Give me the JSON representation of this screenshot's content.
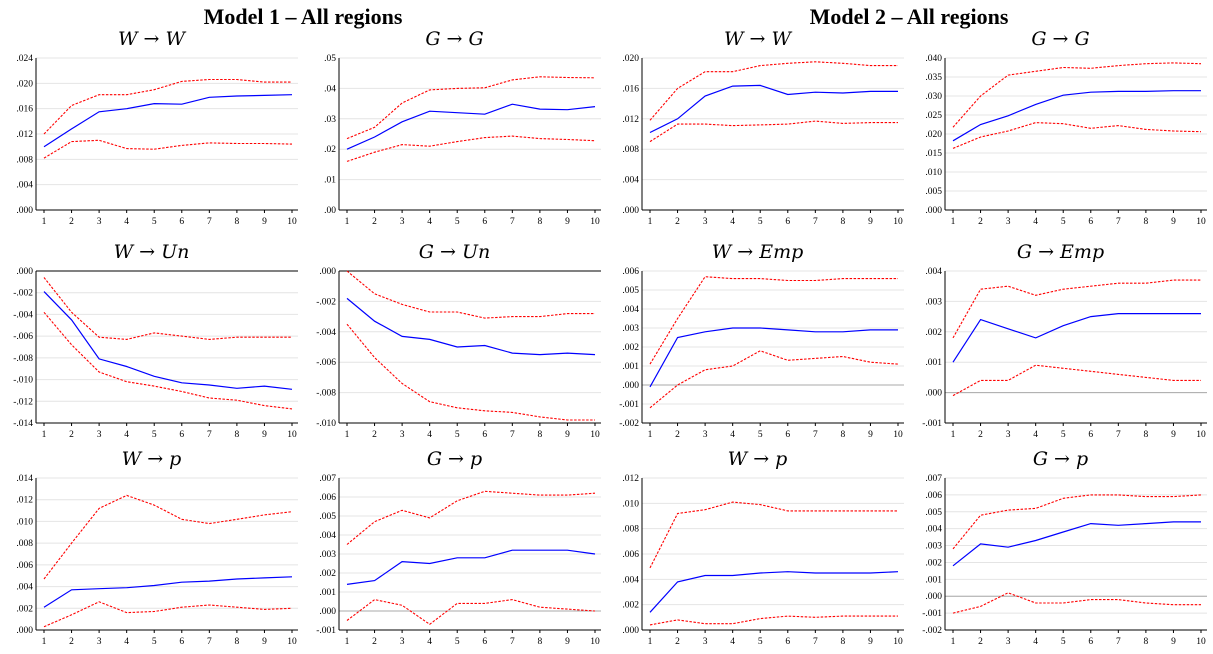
{
  "titles": {
    "left": "Model 1 – All regions",
    "right": "Model 2 – All regions"
  },
  "colors": {
    "response": "#0000ff",
    "band": "#ff0000",
    "grid": "#e4e4e4",
    "zero": "#aaaaaa"
  },
  "chart_data": [
    {
      "type": "line",
      "title": "W → W",
      "x": [
        1,
        2,
        3,
        4,
        5,
        6,
        7,
        8,
        9,
        10
      ],
      "ylim": [
        0,
        0.024
      ],
      "yticks": [
        ".000",
        ".004",
        ".008",
        ".012",
        ".016",
        ".020",
        ".024"
      ],
      "series": [
        {
          "values": [
            0.01,
            0.0128,
            0.0155,
            0.016,
            0.0168,
            0.0167,
            0.0178,
            0.018,
            0.0181,
            0.0182
          ]
        },
        {
          "values": [
            0.012,
            0.0165,
            0.0182,
            0.0182,
            0.019,
            0.0203,
            0.0206,
            0.0206,
            0.0202,
            0.0202
          ]
        },
        {
          "values": [
            0.0082,
            0.0108,
            0.011,
            0.0097,
            0.0096,
            0.0102,
            0.0106,
            0.0105,
            0.0105,
            0.0104
          ]
        }
      ]
    },
    {
      "type": "line",
      "title": "G → G",
      "x": [
        1,
        2,
        3,
        4,
        5,
        6,
        7,
        8,
        9,
        10
      ],
      "ylim": [
        0,
        0.05
      ],
      "yticks": [
        ".00",
        ".01",
        ".02",
        ".03",
        ".04",
        ".05"
      ],
      "series": [
        {
          "values": [
            0.02,
            0.024,
            0.029,
            0.0325,
            0.032,
            0.0315,
            0.0348,
            0.0332,
            0.033,
            0.034
          ]
        },
        {
          "values": [
            0.0235,
            0.0272,
            0.0352,
            0.0395,
            0.04,
            0.0402,
            0.0428,
            0.0438,
            0.0436,
            0.0435
          ]
        },
        {
          "values": [
            0.016,
            0.019,
            0.0215,
            0.021,
            0.0225,
            0.0238,
            0.0243,
            0.0235,
            0.0232,
            0.0228
          ]
        }
      ]
    },
    {
      "type": "line",
      "title": "W → W",
      "x": [
        1,
        2,
        3,
        4,
        5,
        6,
        7,
        8,
        9,
        10
      ],
      "ylim": [
        0,
        0.02
      ],
      "yticks": [
        ".000",
        ".004",
        ".008",
        ".012",
        ".016",
        ".020"
      ],
      "series": [
        {
          "values": [
            0.0102,
            0.012,
            0.015,
            0.0163,
            0.0164,
            0.0152,
            0.0155,
            0.0154,
            0.0156,
            0.0156
          ]
        },
        {
          "values": [
            0.0118,
            0.016,
            0.0182,
            0.0182,
            0.019,
            0.0193,
            0.0195,
            0.0193,
            0.019,
            0.019
          ]
        },
        {
          "values": [
            0.009,
            0.0113,
            0.0113,
            0.0111,
            0.0112,
            0.0113,
            0.0117,
            0.0114,
            0.0115,
            0.0115
          ]
        }
      ]
    },
    {
      "type": "line",
      "title": "G → G",
      "x": [
        1,
        2,
        3,
        4,
        5,
        6,
        7,
        8,
        9,
        10
      ],
      "ylim": [
        0,
        0.04
      ],
      "yticks": [
        ".000",
        ".005",
        ".010",
        ".015",
        ".020",
        ".025",
        ".030",
        ".035",
        ".040"
      ],
      "series": [
        {
          "values": [
            0.0182,
            0.0225,
            0.0248,
            0.0278,
            0.0302,
            0.031,
            0.0312,
            0.0312,
            0.0314,
            0.0314
          ]
        },
        {
          "values": [
            0.0218,
            0.03,
            0.0355,
            0.0365,
            0.0375,
            0.0373,
            0.038,
            0.0385,
            0.0387,
            0.0385
          ]
        },
        {
          "values": [
            0.0162,
            0.0192,
            0.0208,
            0.023,
            0.0227,
            0.0215,
            0.0222,
            0.0212,
            0.0208,
            0.0206
          ]
        }
      ]
    },
    {
      "type": "line",
      "title": "W → Un",
      "x": [
        1,
        2,
        3,
        4,
        5,
        6,
        7,
        8,
        9,
        10
      ],
      "ylim": [
        -0.014,
        0
      ],
      "yticks": [
        "-.014",
        "-.012",
        "-.010",
        "-.008",
        "-.006",
        "-.004",
        "-.002",
        ".000"
      ],
      "series": [
        {
          "values": [
            -0.0019,
            -0.0045,
            -0.0081,
            -0.0088,
            -0.0097,
            -0.0103,
            -0.0105,
            -0.0108,
            -0.0106,
            -0.0109
          ]
        },
        {
          "values": [
            -0.0006,
            -0.0038,
            -0.0061,
            -0.0063,
            -0.0057,
            -0.006,
            -0.0063,
            -0.0061,
            -0.0061,
            -0.0061
          ]
        },
        {
          "values": [
            -0.0038,
            -0.0068,
            -0.0093,
            -0.0102,
            -0.0106,
            -0.0111,
            -0.0117,
            -0.0119,
            -0.0124,
            -0.0127
          ]
        }
      ]
    },
    {
      "type": "line",
      "title": "G → Un",
      "x": [
        1,
        2,
        3,
        4,
        5,
        6,
        7,
        8,
        9,
        10
      ],
      "ylim": [
        -0.01,
        0
      ],
      "yticks": [
        "-.010",
        "-.008",
        "-.006",
        "-.004",
        "-.002",
        ".000"
      ],
      "series": [
        {
          "values": [
            -0.0018,
            -0.0033,
            -0.0043,
            -0.0045,
            -0.005,
            -0.0049,
            -0.0054,
            -0.0055,
            -0.0054,
            -0.0055
          ]
        },
        {
          "values": [
            0.0,
            -0.0015,
            -0.0022,
            -0.0027,
            -0.0027,
            -0.0031,
            -0.003,
            -0.003,
            -0.0028,
            -0.0028
          ]
        },
        {
          "values": [
            -0.0035,
            -0.0057,
            -0.0074,
            -0.0086,
            -0.009,
            -0.0092,
            -0.0093,
            -0.0096,
            -0.0098,
            -0.0098
          ]
        }
      ]
    },
    {
      "type": "line",
      "title": "W → Emp",
      "x": [
        1,
        2,
        3,
        4,
        5,
        6,
        7,
        8,
        9,
        10
      ],
      "ylim": [
        -0.002,
        0.006
      ],
      "yticks": [
        "-.002",
        "-.001",
        ".000",
        ".001",
        ".002",
        ".003",
        ".004",
        ".005",
        ".006"
      ],
      "series": [
        {
          "values": [
            -0.0001,
            0.0025,
            0.0028,
            0.003,
            0.003,
            0.0029,
            0.0028,
            0.0028,
            0.0029,
            0.0029
          ]
        },
        {
          "values": [
            0.0011,
            0.0035,
            0.0057,
            0.0056,
            0.0056,
            0.0055,
            0.0055,
            0.0056,
            0.0056,
            0.0056
          ]
        },
        {
          "values": [
            -0.0012,
            0.0,
            0.0008,
            0.001,
            0.0018,
            0.0013,
            0.0014,
            0.0015,
            0.0012,
            0.0011
          ]
        }
      ]
    },
    {
      "type": "line",
      "title": "G → Emp",
      "x": [
        1,
        2,
        3,
        4,
        5,
        6,
        7,
        8,
        9,
        10
      ],
      "ylim": [
        -0.001,
        0.004
      ],
      "yticks": [
        "-.001",
        ".000",
        ".001",
        ".002",
        ".003",
        ".004"
      ],
      "series": [
        {
          "values": [
            0.001,
            0.0024,
            0.0021,
            0.0018,
            0.0022,
            0.0025,
            0.0026,
            0.0026,
            0.0026,
            0.0026
          ]
        },
        {
          "values": [
            0.0018,
            0.0034,
            0.0035,
            0.0032,
            0.0034,
            0.0035,
            0.0036,
            0.0036,
            0.0037,
            0.0037
          ]
        },
        {
          "values": [
            -0.0001,
            0.0004,
            0.0004,
            0.0009,
            0.0008,
            0.0007,
            0.0006,
            0.0005,
            0.0004,
            0.0004
          ]
        }
      ]
    },
    {
      "type": "line",
      "title": "W → p",
      "x": [
        1,
        2,
        3,
        4,
        5,
        6,
        7,
        8,
        9,
        10
      ],
      "ylim": [
        0,
        0.014
      ],
      "yticks": [
        ".000",
        ".002",
        ".004",
        ".006",
        ".008",
        ".010",
        ".012",
        ".014"
      ],
      "series": [
        {
          "values": [
            0.0021,
            0.0037,
            0.0038,
            0.0039,
            0.0041,
            0.0044,
            0.0045,
            0.0047,
            0.0048,
            0.0049
          ]
        },
        {
          "values": [
            0.0047,
            0.008,
            0.0112,
            0.0124,
            0.0115,
            0.0102,
            0.0098,
            0.0102,
            0.0106,
            0.0109
          ]
        },
        {
          "values": [
            0.0003,
            0.0014,
            0.0026,
            0.0016,
            0.0017,
            0.0021,
            0.0023,
            0.0021,
            0.0019,
            0.002
          ]
        }
      ]
    },
    {
      "type": "line",
      "title": "G → p",
      "x": [
        1,
        2,
        3,
        4,
        5,
        6,
        7,
        8,
        9,
        10
      ],
      "ylim": [
        -0.001,
        0.007
      ],
      "yticks": [
        "-.001",
        ".000",
        ".001",
        ".002",
        ".003",
        ".004",
        ".005",
        ".006",
        ".007"
      ],
      "series": [
        {
          "values": [
            0.0014,
            0.0016,
            0.0026,
            0.0025,
            0.0028,
            0.0028,
            0.0032,
            0.0032,
            0.0032,
            0.003
          ]
        },
        {
          "values": [
            0.0035,
            0.0047,
            0.0053,
            0.0049,
            0.0058,
            0.0063,
            0.0062,
            0.0061,
            0.0061,
            0.0062
          ]
        },
        {
          "values": [
            -0.0005,
            0.0006,
            0.0003,
            -0.0007,
            0.0004,
            0.0004,
            0.0006,
            0.0002,
            0.0001,
            0.0
          ]
        }
      ]
    },
    {
      "type": "line",
      "title": "W → p",
      "x": [
        1,
        2,
        3,
        4,
        5,
        6,
        7,
        8,
        9,
        10
      ],
      "ylim": [
        0,
        0.012
      ],
      "yticks": [
        ".000",
        ".002",
        ".004",
        ".006",
        ".008",
        ".010",
        ".012"
      ],
      "series": [
        {
          "values": [
            0.0014,
            0.0038,
            0.0043,
            0.0043,
            0.0045,
            0.0046,
            0.0045,
            0.0045,
            0.0045,
            0.0046
          ]
        },
        {
          "values": [
            0.0049,
            0.0092,
            0.0095,
            0.0101,
            0.0099,
            0.0094,
            0.0094,
            0.0094,
            0.0094,
            0.0094
          ]
        },
        {
          "values": [
            0.0004,
            0.0008,
            0.0005,
            0.0005,
            0.0009,
            0.0011,
            0.001,
            0.0011,
            0.0011,
            0.0011
          ]
        }
      ]
    },
    {
      "type": "line",
      "title": "G → p",
      "x": [
        1,
        2,
        3,
        4,
        5,
        6,
        7,
        8,
        9,
        10
      ],
      "ylim": [
        -0.002,
        0.007
      ],
      "yticks": [
        "-.002",
        "-.001",
        ".000",
        ".001",
        ".002",
        ".003",
        ".004",
        ".005",
        ".006",
        ".007"
      ],
      "series": [
        {
          "values": [
            0.0018,
            0.0031,
            0.0029,
            0.0033,
            0.0038,
            0.0043,
            0.0042,
            0.0043,
            0.0044,
            0.0044
          ]
        },
        {
          "values": [
            0.0028,
            0.0048,
            0.0051,
            0.0052,
            0.0058,
            0.006,
            0.006,
            0.0059,
            0.0059,
            0.006
          ]
        },
        {
          "values": [
            -0.001,
            -0.0006,
            0.0002,
            -0.0004,
            -0.0004,
            -0.0002,
            -0.0002,
            -0.0004,
            -0.0005,
            -0.0005
          ]
        }
      ]
    }
  ]
}
